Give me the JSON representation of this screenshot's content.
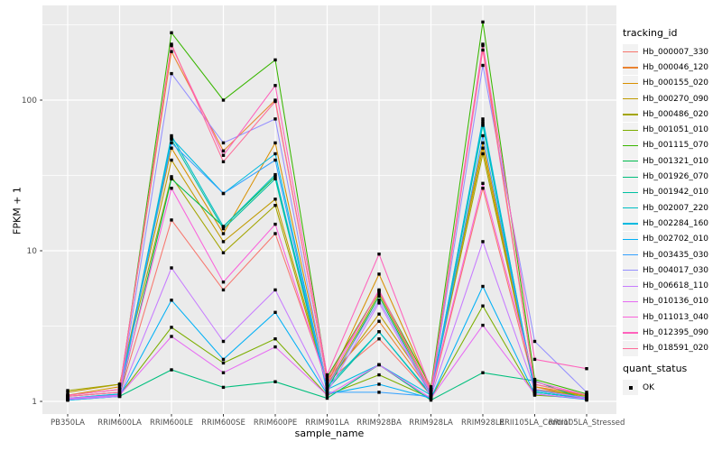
{
  "figure": {
    "background": "#FFFFFF",
    "panel_background": "#EBEBEB",
    "gridline_color": "#FFFFFF",
    "tick_mark_color": "#333333",
    "tick_label_color": "#4D4D4D"
  },
  "legend": {
    "tracking_title": "tracking_id",
    "quant_title": "quant_status",
    "quant_ok_label": "OK",
    "quant_marker": "black-square"
  },
  "chart_data": {
    "type": "line",
    "title": "",
    "xlabel": "sample_name",
    "ylabel": "FPKM + 1",
    "y_scale": "log10",
    "y_tick_labels": [
      "1",
      "10",
      "100"
    ],
    "y_tick_values": [
      1,
      10,
      100
    ],
    "y_minor_values": [
      3.162,
      31.62,
      316.2
    ],
    "ylim": [
      0.84,
      420
    ],
    "grid": true,
    "legend_position": "right",
    "point_shape": "filled-square",
    "point_color": "#000000",
    "x_categories": [
      "PB350LA",
      "RRIM600LA",
      "RRIM600LE",
      "RRIM600SE",
      "RRIM600PE",
      "RRIM901LA",
      "RRIM928BA",
      "RRIM928LA",
      "RRIM928LE",
      "RRII105LA_Control",
      "RRII105LA_Stressed"
    ],
    "series": [
      {
        "name": "Hb_000007_330",
        "color": "#F8766D",
        "values": [
          1.05,
          1.1,
          16,
          5.5,
          13,
          1.35,
          2.6,
          1.1,
          26,
          1.25,
          1.05
        ]
      },
      {
        "name": "Hb_000046_120",
        "color": "#EA8331",
        "values": [
          1.1,
          1.2,
          210,
          46,
          100,
          1.4,
          3.4,
          1.15,
          230,
          1.3,
          1.1
        ]
      },
      {
        "name": "Hb_000155_020",
        "color": "#D89000",
        "values": [
          1.1,
          1.25,
          48,
          13,
          52,
          1.3,
          7.0,
          1.2,
          52,
          1.25,
          1.1
        ]
      },
      {
        "name": "Hb_000270_090",
        "color": "#C09B00",
        "values": [
          1.15,
          1.3,
          40,
          11.5,
          22,
          1.3,
          3.8,
          1.2,
          48,
          1.2,
          1.1
        ]
      },
      {
        "name": "Hb_000486_020",
        "color": "#A3A500",
        "values": [
          1.18,
          1.3,
          31,
          9.7,
          20,
          1.25,
          5.2,
          1.15,
          44,
          1.2,
          1.08
        ]
      },
      {
        "name": "Hb_001051_010",
        "color": "#7CAE00",
        "values": [
          1.05,
          1.1,
          3.1,
          1.8,
          2.6,
          1.1,
          1.5,
          1.05,
          4.3,
          1.1,
          1.05
        ]
      },
      {
        "name": "Hb_001115_070",
        "color": "#39B600",
        "values": [
          1.08,
          1.15,
          280,
          100,
          185,
          1.45,
          5.4,
          1.25,
          330,
          1.4,
          1.12
        ]
      },
      {
        "name": "Hb_001321_010",
        "color": "#00BB4E",
        "values": [
          1.05,
          1.1,
          30,
          14.5,
          31,
          1.2,
          5.0,
          1.1,
          70,
          1.15,
          1.05
        ]
      },
      {
        "name": "Hb_001926_070",
        "color": "#00BF7D",
        "values": [
          1.02,
          1.08,
          1.62,
          1.24,
          1.35,
          1.05,
          1.75,
          1.02,
          1.55,
          1.37,
          1.02
        ]
      },
      {
        "name": "Hb_001942_010",
        "color": "#00C1A3",
        "values": [
          1.05,
          1.1,
          55,
          14,
          30,
          1.2,
          2.9,
          1.1,
          68,
          1.15,
          1.05
        ]
      },
      {
        "name": "Hb_002007_220",
        "color": "#00BFC4",
        "values": [
          1.05,
          1.12,
          58,
          14.5,
          32,
          1.25,
          2.9,
          1.12,
          72,
          1.18,
          1.06
        ]
      },
      {
        "name": "Hb_002284_160",
        "color": "#00BAE0",
        "values": [
          1.05,
          1.12,
          56,
          24,
          44,
          1.2,
          1.75,
          1.1,
          75,
          1.15,
          1.05
        ]
      },
      {
        "name": "Hb_002702_010",
        "color": "#00B0F6",
        "values": [
          1.02,
          1.08,
          4.7,
          1.9,
          3.9,
          1.12,
          1.3,
          1.05,
          5.8,
          1.12,
          1.03
        ]
      },
      {
        "name": "Hb_003435_030",
        "color": "#35A2FF",
        "values": [
          1.03,
          1.08,
          52,
          24,
          40,
          1.15,
          1.15,
          1.08,
          58,
          1.2,
          1.05
        ]
      },
      {
        "name": "Hb_004017_030",
        "color": "#9590FF",
        "values": [
          1.04,
          1.1,
          150,
          52,
          75,
          1.25,
          4.7,
          1.12,
          170,
          2.5,
          1.15
        ]
      },
      {
        "name": "Hb_006618_110",
        "color": "#C77CFF",
        "values": [
          1.03,
          1.08,
          7.7,
          2.5,
          5.5,
          1.15,
          4.5,
          1.08,
          11.5,
          1.2,
          1.05
        ]
      },
      {
        "name": "Hb_010136_010",
        "color": "#E76BF3",
        "values": [
          1.05,
          1.1,
          2.7,
          1.55,
          2.3,
          1.1,
          1.75,
          1.05,
          3.2,
          1.12,
          1.04
        ]
      },
      {
        "name": "Hb_011013_040",
        "color": "#FA62DB",
        "values": [
          1.08,
          1.15,
          26,
          6.2,
          15,
          1.3,
          5.5,
          1.15,
          28,
          1.35,
          1.1
        ]
      },
      {
        "name": "Hb_012395_090",
        "color": "#FF62BC",
        "values": [
          1.1,
          1.2,
          230,
          43,
          125,
          1.5,
          9.5,
          1.2,
          235,
          1.9,
          1.65
        ]
      },
      {
        "name": "Hb_018591_020",
        "color": "#FF6A98",
        "values": [
          1.08,
          1.15,
          235,
          39,
          98,
          1.4,
          5.4,
          1.18,
          215,
          1.3,
          1.1
        ]
      }
    ]
  }
}
